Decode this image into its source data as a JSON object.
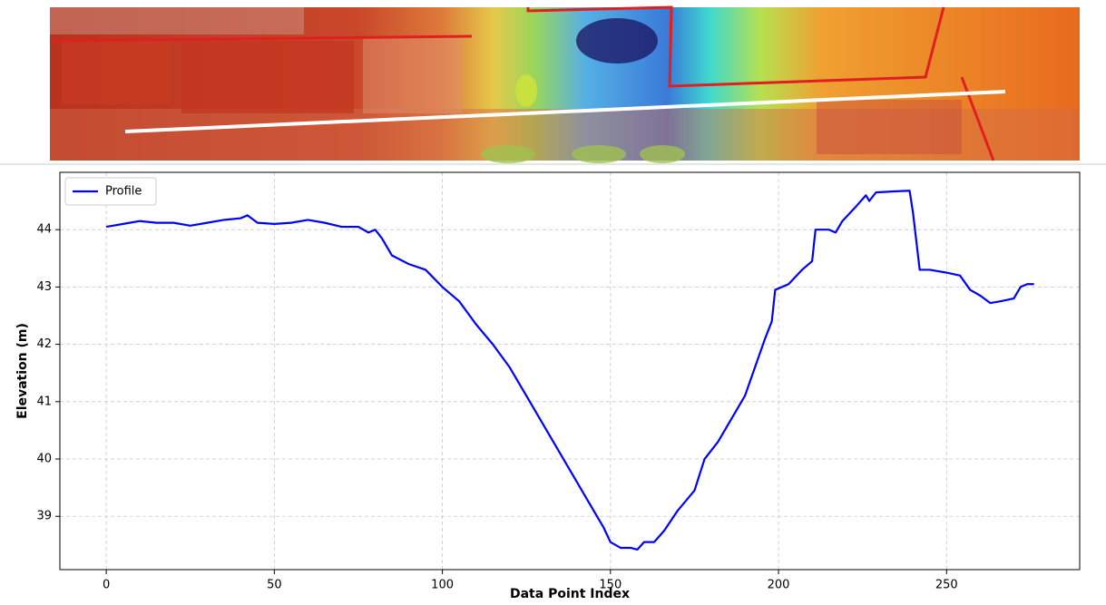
{
  "chart_data": {
    "type": "line",
    "xlabel": "Data Point Index",
    "ylabel": "Elevation (m)",
    "x": [
      0,
      5,
      10,
      15,
      20,
      25,
      30,
      35,
      40,
      42,
      45,
      50,
      55,
      60,
      65,
      70,
      75,
      78,
      80,
      82,
      85,
      90,
      95,
      100,
      105,
      110,
      115,
      120,
      125,
      130,
      135,
      140,
      145,
      148,
      150,
      153,
      156,
      158,
      160,
      163,
      166,
      170,
      175,
      178,
      182,
      185,
      190,
      193,
      196,
      198,
      199,
      203,
      207,
      210,
      211,
      215,
      217,
      219,
      223,
      226,
      227,
      229,
      235,
      239,
      240,
      242,
      245,
      250,
      254,
      257,
      260,
      263,
      266,
      270,
      272,
      274,
      276
    ],
    "series": [
      {
        "name": "Profile",
        "color": "#0000ff",
        "values": [
          44.05,
          44.1,
          44.15,
          44.12,
          44.12,
          44.07,
          44.12,
          44.17,
          44.2,
          44.25,
          44.12,
          44.1,
          44.12,
          44.17,
          44.12,
          44.05,
          44.05,
          43.95,
          44.0,
          43.85,
          43.55,
          43.4,
          43.3,
          43.0,
          42.75,
          42.35,
          42.0,
          41.6,
          41.1,
          40.6,
          40.1,
          39.6,
          39.1,
          38.8,
          38.55,
          38.45,
          38.45,
          38.42,
          38.55,
          38.55,
          38.75,
          39.1,
          39.45,
          40.0,
          40.3,
          40.6,
          41.1,
          41.6,
          42.1,
          42.4,
          42.95,
          43.05,
          43.3,
          43.45,
          44.0,
          44.0,
          43.95,
          44.15,
          44.4,
          44.6,
          44.5,
          44.65,
          44.67,
          44.68,
          44.3,
          43.3,
          43.3,
          43.25,
          43.2,
          42.95,
          42.85,
          42.72,
          42.75,
          42.8,
          43.0,
          43.05,
          43.05
        ]
      }
    ],
    "xlim": [
      -13.8,
      289.6
    ],
    "ylim": [
      38.07,
      45.0
    ],
    "xticks": [
      0,
      50,
      100,
      150,
      200,
      250
    ],
    "yticks": [
      39,
      40,
      41,
      42,
      43,
      44
    ],
    "grid": true,
    "legend": "upper left"
  }
}
